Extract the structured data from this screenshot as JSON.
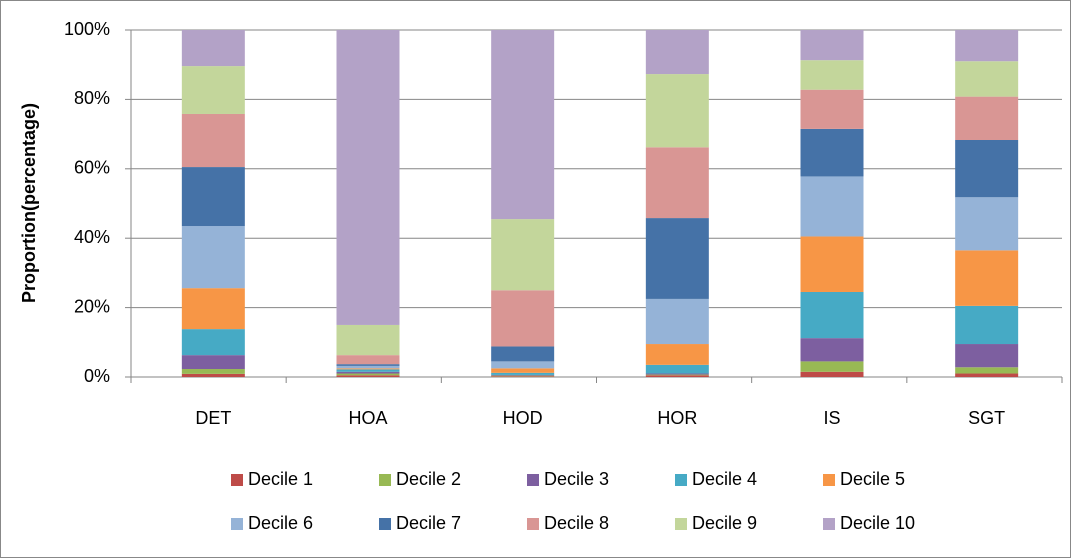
{
  "chart_data": {
    "type": "stacked_bar",
    "y_axis_label": "Proportion(percentage)",
    "categories": [
      "DET",
      "HOA",
      "HOD",
      "HOR",
      "IS",
      "SGT"
    ],
    "series": [
      {
        "name": "Decile 1",
        "color": "#be4b48",
        "values": [
          0.9,
          0.5,
          0.2,
          0.5,
          1.5,
          1.0
        ]
      },
      {
        "name": "Decile 2",
        "color": "#98b954",
        "values": [
          1.4,
          0.5,
          0.2,
          0.2,
          3.0,
          1.8
        ]
      },
      {
        "name": "Decile 3",
        "color": "#7d5fa0",
        "values": [
          4.0,
          0.5,
          0.2,
          0.3,
          6.7,
          6.7
        ]
      },
      {
        "name": "Decile 4",
        "color": "#46aac5",
        "values": [
          7.5,
          0.7,
          0.6,
          2.5,
          13.3,
          11.0
        ]
      },
      {
        "name": "Decile 5",
        "color": "#f79646",
        "values": [
          11.8,
          0.3,
          1.3,
          6.0,
          16.0,
          16.0
        ]
      },
      {
        "name": "Decile 6",
        "color": "#95b3d7",
        "values": [
          17.9,
          0.7,
          2.0,
          13.0,
          17.3,
          15.3
        ]
      },
      {
        "name": "Decile 7",
        "color": "#4572a7",
        "values": [
          17.0,
          0.5,
          4.3,
          23.3,
          13.7,
          16.5
        ]
      },
      {
        "name": "Decile 8",
        "color": "#d99694",
        "values": [
          15.3,
          2.6,
          16.2,
          20.4,
          11.3,
          12.5
        ]
      },
      {
        "name": "Decile 9",
        "color": "#c3d69b",
        "values": [
          13.8,
          8.7,
          20.5,
          21.1,
          8.5,
          10.2
        ]
      },
      {
        "name": "Decile 10",
        "color": "#b3a2c7",
        "values": [
          10.4,
          85.0,
          54.5,
          12.7,
          8.7,
          9.0
        ]
      }
    ],
    "ylim": [
      0,
      100
    ],
    "yticks": [
      {
        "value": 0,
        "label": "0%"
      },
      {
        "value": 20,
        "label": "20%"
      },
      {
        "value": 40,
        "label": "40%"
      },
      {
        "value": 60,
        "label": "60%"
      },
      {
        "value": 80,
        "label": "80%"
      },
      {
        "value": 100,
        "label": "100%"
      }
    ],
    "grid": true
  }
}
